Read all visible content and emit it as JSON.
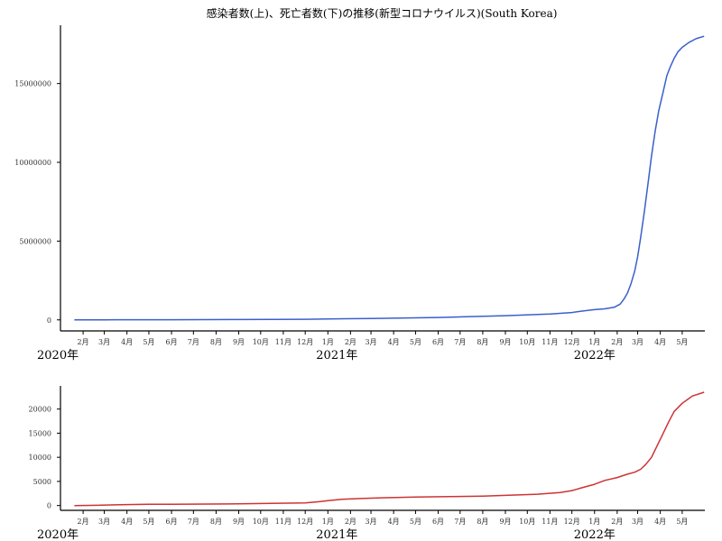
{
  "chart_data": [
    {
      "type": "line",
      "title": "感染者数(上)、死亡者数(下)の推移(新型コロナウイルス)(South Korea)",
      "xlabel": "",
      "ylabel": "",
      "x_range": [
        "2020-01-01",
        "2022-06-01"
      ],
      "ylim": [
        -700000,
        18700000
      ],
      "y_ticks": [
        0,
        5000000,
        10000000,
        15000000
      ],
      "y_tick_labels": [
        "0",
        "5000000",
        "10000000",
        "15000000"
      ],
      "grid": false,
      "color": "#3a5fcd",
      "series": [
        {
          "x": [
            "2020-01-20",
            "2020-03-01",
            "2020-06-01",
            "2020-09-01",
            "2020-12-01",
            "2021-01-01",
            "2021-03-01",
            "2021-06-01",
            "2021-09-01",
            "2021-11-01",
            "2021-12-01",
            "2021-12-15",
            "2022-01-01",
            "2022-01-15",
            "2022-01-28",
            "2022-02-05",
            "2022-02-10",
            "2022-02-15",
            "2022-02-20",
            "2022-02-25",
            "2022-03-01",
            "2022-03-05",
            "2022-03-10",
            "2022-03-15",
            "2022-03-20",
            "2022-03-25",
            "2022-03-30",
            "2022-04-05",
            "2022-04-10",
            "2022-04-15",
            "2022-04-20",
            "2022-04-25",
            "2022-05-01",
            "2022-05-10",
            "2022-05-20",
            "2022-05-31"
          ],
          "values": [
            0,
            5000,
            12000,
            22000,
            38000,
            62000,
            92000,
            150000,
            270000,
            370000,
            470000,
            560000,
            650000,
            700000,
            800000,
            1000000,
            1300000,
            1700000,
            2300000,
            3100000,
            4000000,
            5200000,
            6800000,
            8600000,
            10400000,
            12000000,
            13300000,
            14500000,
            15500000,
            16100000,
            16600000,
            17000000,
            17300000,
            17600000,
            17850000,
            18000000
          ]
        }
      ]
    },
    {
      "type": "line",
      "title": "",
      "xlabel": "",
      "ylabel": "",
      "x_range": [
        "2020-01-01",
        "2022-06-01"
      ],
      "ylim": [
        -1000,
        24800
      ],
      "y_ticks": [
        0,
        5000,
        10000,
        15000,
        20000
      ],
      "y_tick_labels": [
        "0",
        "5000",
        "10000",
        "15000",
        "20000"
      ],
      "grid": false,
      "color": "#cd3333",
      "series": [
        {
          "x": [
            "2020-01-20",
            "2020-02-20",
            "2020-04-01",
            "2020-05-01",
            "2020-06-01",
            "2020-09-01",
            "2020-12-01",
            "2020-12-20",
            "2021-01-01",
            "2021-01-20",
            "2021-02-15",
            "2021-03-15",
            "2021-05-01",
            "2021-06-15",
            "2021-08-01",
            "2021-09-01",
            "2021-10-15",
            "2021-11-15",
            "2021-12-01",
            "2021-12-15",
            "2022-01-01",
            "2022-01-15",
            "2022-02-01",
            "2022-02-15",
            "2022-02-25",
            "2022-03-05",
            "2022-03-12",
            "2022-03-20",
            "2022-03-28",
            "2022-04-05",
            "2022-04-12",
            "2022-04-20",
            "2022-05-01",
            "2022-05-15",
            "2022-05-31"
          ],
          "values": [
            0,
            50,
            200,
            250,
            280,
            350,
            550,
            800,
            1000,
            1300,
            1450,
            1600,
            1750,
            1850,
            1950,
            2100,
            2350,
            2700,
            3100,
            3700,
            4400,
            5200,
            5800,
            6500,
            6900,
            7500,
            8500,
            10000,
            12500,
            15000,
            17200,
            19500,
            21200,
            22700,
            23500
          ]
        }
      ]
    }
  ],
  "x_axis": {
    "months": [
      "2月",
      "3月",
      "4月",
      "5月",
      "6月",
      "7月",
      "8月",
      "9月",
      "10月",
      "11月",
      "12月",
      "1月",
      "2月",
      "3月",
      "4月",
      "5月",
      "6月",
      "7月",
      "8月",
      "9月",
      "10月",
      "11月",
      "12月",
      "1月",
      "2月",
      "3月",
      "4月",
      "5月"
    ],
    "years": [
      "2020年",
      "2021年",
      "2022年"
    ]
  }
}
